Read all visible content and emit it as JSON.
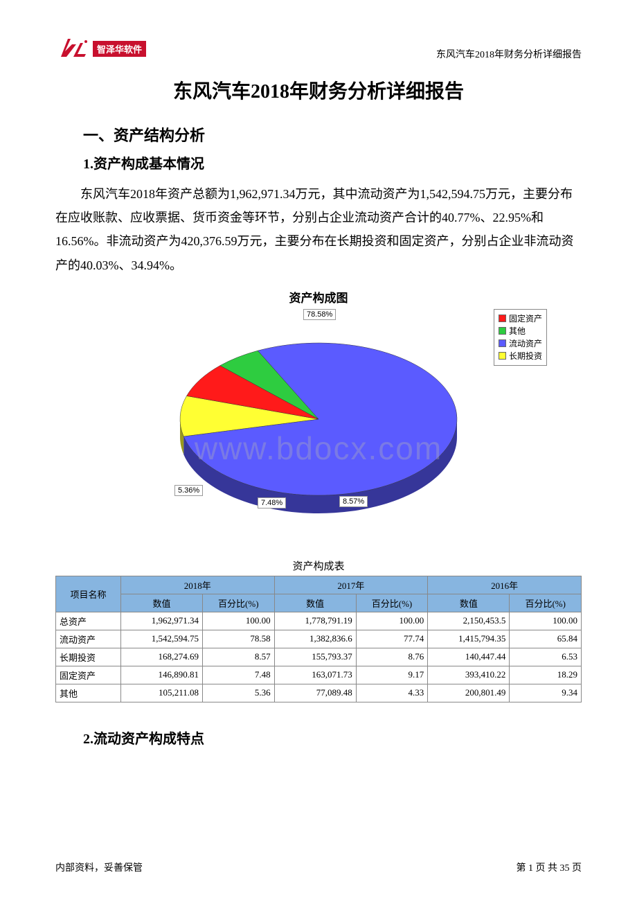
{
  "header": {
    "logo_text": "智泽华软件",
    "right_text": "东风汽车2018年财务分析详细报告"
  },
  "title": "东风汽车2018年财务分析详细报告",
  "section1_heading": "一、资产结构分析",
  "subsection1_heading": "1.资产构成基本情况",
  "paragraph1": "东风汽车2018年资产总额为1,962,971.34万元，其中流动资产为1,542,594.75万元，主要分布在应收账款、应收票据、货币资金等环节，分别占企业流动资产合计的40.77%、22.95%和16.56%。非流动资产为420,376.59万元，主要分布在长期投资和固定资产，分别占企业非流动资产的40.03%、34.94%。",
  "chart": {
    "title": "资产构成图",
    "type": "pie",
    "background_color": "#ffffff",
    "slices": [
      {
        "name": "流动资产",
        "value": 78.58,
        "color": "#5b5bff",
        "label": "78.58%"
      },
      {
        "name": "长期投资",
        "value": 8.57,
        "color": "#ffff33",
        "label": "8.57%"
      },
      {
        "name": "固定资产",
        "value": 7.48,
        "color": "#ff1a1a",
        "label": "7.48%"
      },
      {
        "name": "其他",
        "value": 5.36,
        "color": "#2ecc40",
        "label": "5.36%"
      }
    ],
    "legend": [
      {
        "label": "固定资产",
        "color": "#ff1a1a"
      },
      {
        "label": "其他",
        "color": "#2ecc40"
      },
      {
        "label": "流动资产",
        "color": "#5b5bff"
      },
      {
        "label": "长期投资",
        "color": "#ffff33"
      }
    ],
    "label_border": "#999999",
    "label_bg": "#ffffff",
    "label_fontsize": 11,
    "title_fontsize": 17,
    "depth_effect": true
  },
  "watermark": "www.bdocx.com",
  "table": {
    "caption": "资产构成表",
    "header_bg": "#87b5e0",
    "border_color": "#888888",
    "years": [
      "2018年",
      "2017年",
      "2016年"
    ],
    "col_group_sub": [
      "数值",
      "百分比(%)"
    ],
    "row_header": "项目名称",
    "rows": [
      {
        "label": "总资产",
        "cells": [
          "1,962,971.34",
          "100.00",
          "1,778,791.19",
          "100.00",
          "2,150,453.5",
          "100.00"
        ]
      },
      {
        "label": "流动资产",
        "cells": [
          "1,542,594.75",
          "78.58",
          "1,382,836.6",
          "77.74",
          "1,415,794.35",
          "65.84"
        ]
      },
      {
        "label": "长期投资",
        "cells": [
          "168,274.69",
          "8.57",
          "155,793.37",
          "8.76",
          "140,447.44",
          "6.53"
        ]
      },
      {
        "label": "固定资产",
        "cells": [
          "146,890.81",
          "7.48",
          "163,071.73",
          "9.17",
          "393,410.22",
          "18.29"
        ]
      },
      {
        "label": "其他",
        "cells": [
          "105,211.08",
          "5.36",
          "77,089.48",
          "4.33",
          "200,801.49",
          "9.34"
        ]
      }
    ]
  },
  "subsection2_heading": "2.流动资产构成特点",
  "footer": {
    "left": "内部资料，妥善保管",
    "right": "第 1 页 共 35 页"
  }
}
